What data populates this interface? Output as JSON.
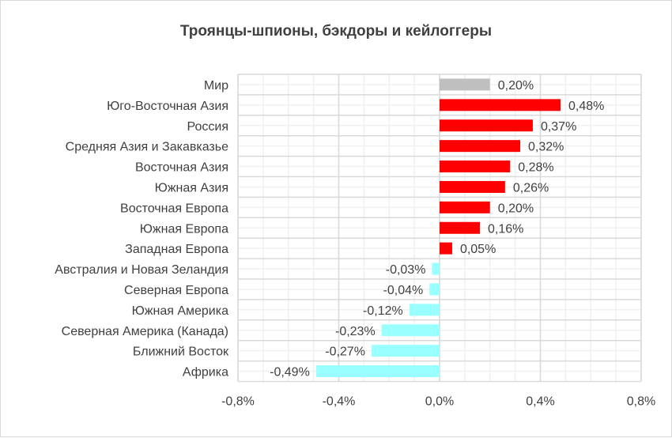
{
  "chart_data": {
    "type": "bar",
    "orientation": "horizontal",
    "title": "Троянцы-шпионы, бэкдоры и кейлоггеры",
    "categories": [
      "Мир",
      "Юго-Восточная Азия",
      "Россия",
      "Средняя Азия и Закавказье",
      "Восточная Азия",
      "Южная Азия",
      "Восточная Европа",
      "Южная Европа",
      "Западная Европа",
      "Австралия и Новая Зеландия",
      "Северная Европа",
      "Южная Америка",
      "Северная Америка (Канада)",
      "Ближний Восток",
      "Африка"
    ],
    "values": [
      0.2,
      0.48,
      0.37,
      0.32,
      0.28,
      0.26,
      0.2,
      0.16,
      0.05,
      -0.03,
      -0.04,
      -0.12,
      -0.23,
      -0.27,
      -0.49
    ],
    "labels": [
      "0,20%",
      "0,48%",
      "0,37%",
      "0,32%",
      "0,28%",
      "0,26%",
      "0,20%",
      "0,16%",
      "0,05%",
      "-0,03%",
      "-0,04%",
      "-0,12%",
      "-0,23%",
      "-0,27%",
      "-0,49%"
    ],
    "xlim": [
      -0.8,
      0.8
    ],
    "xticks": [
      -0.8,
      -0.4,
      0,
      0.4,
      0.8
    ],
    "xtick_labels": [
      "-0,8%",
      "-0,4%",
      "0,0%",
      "0,4%",
      "0,8%"
    ],
    "grid": true,
    "colors": {
      "world": "#bfbfbf",
      "positive": "#ff0000",
      "negative": "#99ffff"
    }
  }
}
